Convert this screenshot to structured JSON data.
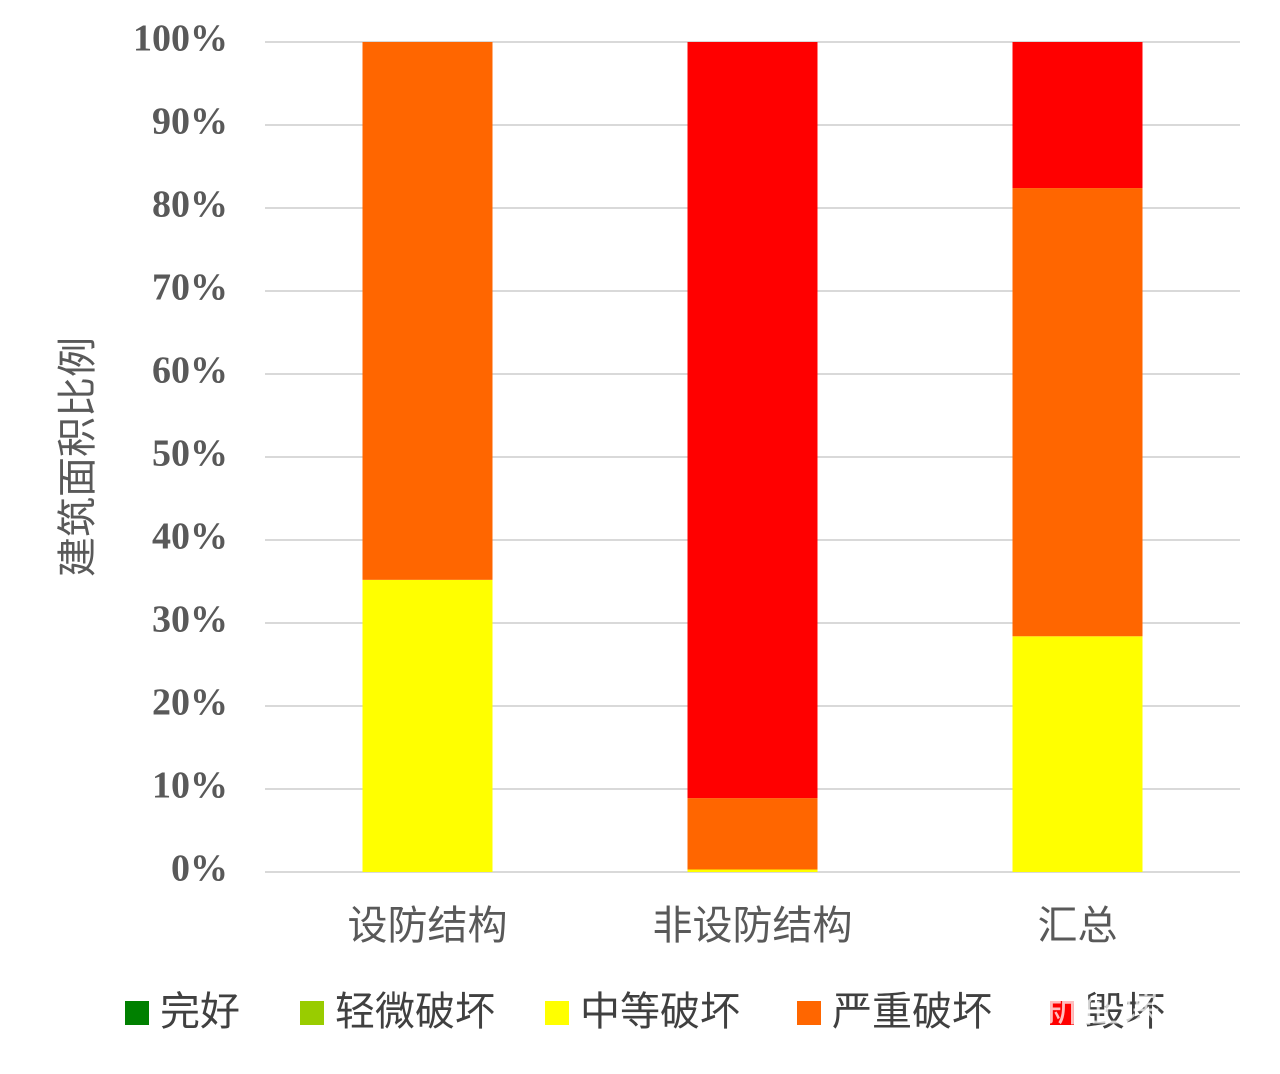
{
  "chart_data": {
    "type": "stacked_bar",
    "y_label": "建筑面积比例",
    "categories": [
      "设防结构",
      "非设防结构",
      "汇总"
    ],
    "series": [
      {
        "name": "完好",
        "color": "#008000",
        "values": [
          0,
          0,
          0
        ]
      },
      {
        "name": "轻微破坏",
        "color": "#99cc00",
        "values": [
          0,
          0,
          0
        ]
      },
      {
        "name": "中等破坏",
        "color": "#ffff00",
        "values": [
          35.2,
          0.3,
          28.4
        ]
      },
      {
        "name": "严重破坏",
        "color": "#ff6600",
        "values": [
          64.8,
          8.6,
          54.0
        ]
      },
      {
        "name": "毁坏",
        "color": "#ff0000",
        "values": [
          0,
          91.1,
          17.6
        ]
      }
    ],
    "ylim": [
      0,
      100
    ],
    "yticks": [
      {
        "value": 0,
        "label": "0%"
      },
      {
        "value": 10,
        "label": "10%"
      },
      {
        "value": 20,
        "label": "20%"
      },
      {
        "value": 30,
        "label": "30%"
      },
      {
        "value": 40,
        "label": "40%"
      },
      {
        "value": 50,
        "label": "50%"
      },
      {
        "value": 60,
        "label": "60%"
      },
      {
        "value": 70,
        "label": "70%"
      },
      {
        "value": 80,
        "label": "80%"
      },
      {
        "value": 90,
        "label": "90%"
      },
      {
        "value": 100,
        "label": "100%"
      }
    ],
    "grid": true,
    "legend": "bottom",
    "watermark": "陆新征课题组"
  }
}
